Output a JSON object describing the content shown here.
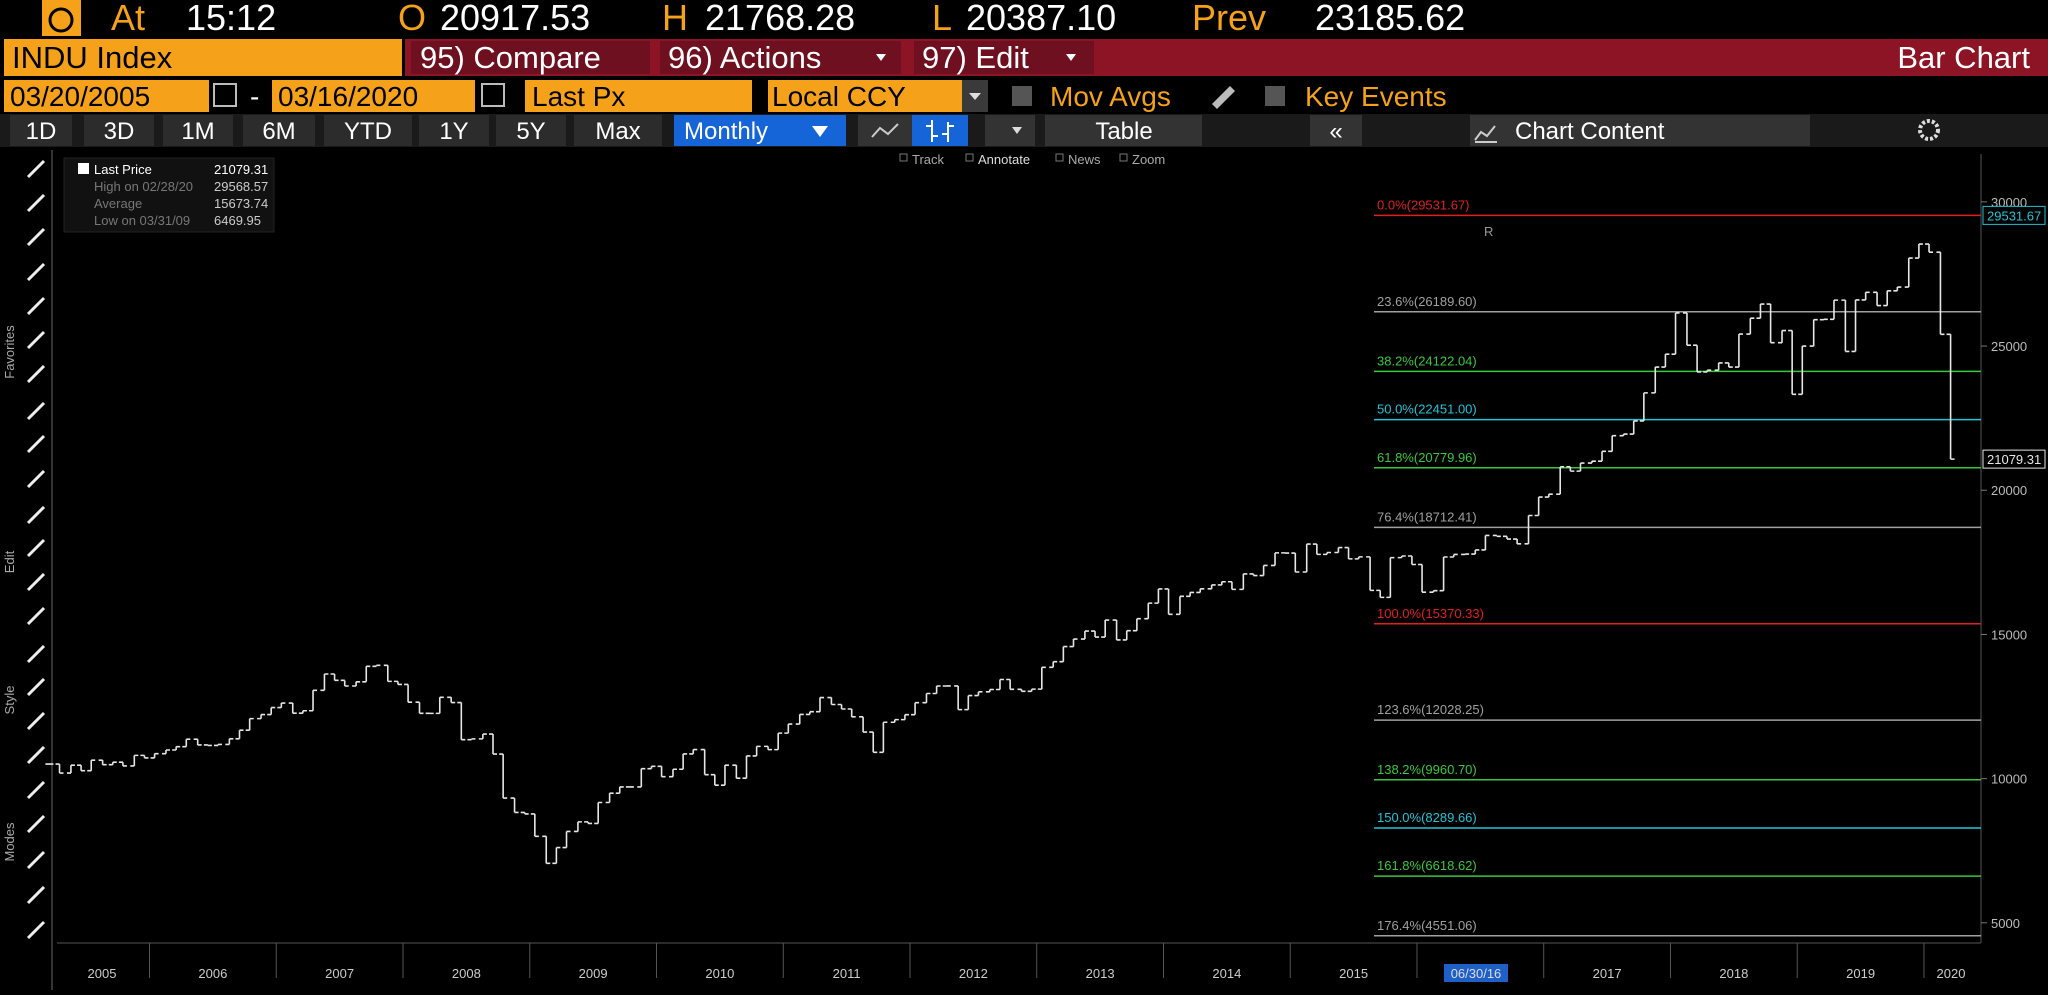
{
  "header": {
    "at": "At",
    "time": "15:12",
    "open_label": "O",
    "open": "20917.53",
    "high_label": "H",
    "high": "21768.28",
    "low_label": "L",
    "low": "20387.10",
    "prev_label": "Prev",
    "prev": "23185.62"
  },
  "menu": {
    "ticker": "INDU Index",
    "compare": "95) Compare",
    "actions": "96) Actions",
    "edit": "97) Edit",
    "chart_type": "Bar Chart"
  },
  "settings": {
    "start_date": "03/20/2005",
    "dash": "-",
    "end_date": "03/16/2020",
    "field": "Last Px",
    "currency": "Local CCY",
    "mov_avgs": "Mov Avgs",
    "key_events": "Key Events"
  },
  "toolbar": {
    "periods": [
      "1D",
      "3D",
      "1M",
      "6M",
      "YTD",
      "1Y",
      "5Y",
      "Max"
    ],
    "frequency": "Monthly",
    "table": "Table",
    "collapse": "«",
    "chart_content": "Chart Content",
    "tools": [
      "Track",
      "Annotate",
      "News",
      "Zoom"
    ]
  },
  "sidebar": [
    "Favorites",
    "Edit",
    "Style",
    "Modes"
  ],
  "chart_data": {
    "type": "ohlc",
    "x": [
      2005.21,
      2005.29,
      2005.38,
      2005.46,
      2005.54,
      2005.63,
      2005.71,
      2005.79,
      2005.88,
      2005.96,
      2006.04,
      2006.13,
      2006.21,
      2006.29,
      2006.38,
      2006.46,
      2006.54,
      2006.63,
      2006.71,
      2006.79,
      2006.88,
      2006.96,
      2007.04,
      2007.13,
      2007.21,
      2007.29,
      2007.38,
      2007.46,
      2007.54,
      2007.63,
      2007.71,
      2007.79,
      2007.88,
      2007.96,
      2008.04,
      2008.13,
      2008.21,
      2008.29,
      2008.38,
      2008.46,
      2008.54,
      2008.63,
      2008.71,
      2008.79,
      2008.88,
      2008.96,
      2009.04,
      2009.13,
      2009.21,
      2009.29,
      2009.38,
      2009.46,
      2009.54,
      2009.63,
      2009.71,
      2009.79,
      2009.88,
      2009.96,
      2010.04,
      2010.13,
      2010.21,
      2010.29,
      2010.38,
      2010.46,
      2010.54,
      2010.63,
      2010.71,
      2010.79,
      2010.88,
      2010.96,
      2011.04,
      2011.13,
      2011.21,
      2011.29,
      2011.38,
      2011.46,
      2011.54,
      2011.63,
      2011.71,
      2011.79,
      2011.88,
      2011.96,
      2012.04,
      2012.13,
      2012.21,
      2012.29,
      2012.38,
      2012.46,
      2012.54,
      2012.63,
      2012.71,
      2012.79,
      2012.88,
      2012.96,
      2013.04,
      2013.13,
      2013.21,
      2013.29,
      2013.38,
      2013.46,
      2013.54,
      2013.63,
      2013.71,
      2013.79,
      2013.88,
      2013.96,
      2014.04,
      2014.13,
      2014.21,
      2014.29,
      2014.38,
      2014.46,
      2014.54,
      2014.63,
      2014.71,
      2014.79,
      2014.88,
      2014.96,
      2015.04,
      2015.13,
      2015.21,
      2015.29,
      2015.38,
      2015.46,
      2015.54,
      2015.63,
      2015.71,
      2015.79,
      2015.88,
      2015.96,
      2016.04,
      2016.13,
      2016.21,
      2016.29,
      2016.38,
      2016.46,
      2016.54,
      2016.63,
      2016.71,
      2016.79,
      2016.88,
      2016.96,
      2017.04,
      2017.13,
      2017.21,
      2017.29,
      2017.38,
      2017.46,
      2017.54,
      2017.63,
      2017.71,
      2017.79,
      2017.88,
      2017.96,
      2018.04,
      2018.13,
      2018.21,
      2018.29,
      2018.38,
      2018.46,
      2018.54,
      2018.63,
      2018.71,
      2018.79,
      2018.88,
      2018.96,
      2019.04,
      2019.13,
      2019.21,
      2019.29,
      2019.38,
      2019.46,
      2019.54,
      2019.63,
      2019.71,
      2019.79,
      2019.88,
      2019.96,
      2020.04,
      2020.13,
      2020.21
    ],
    "series": [
      {
        "name": "Last Price",
        "color": "#e6e6e6",
        "values": [
          10504,
          10193,
          10467,
          10275,
          10641,
          10482,
          10569,
          10440,
          10806,
          10718,
          10865,
          10993,
          11109,
          11367,
          11168,
          11150,
          11186,
          11381,
          11679,
          12081,
          12222,
          12463,
          12622,
          12269,
          12354,
          13063,
          13628,
          13409,
          13212,
          13358,
          13896,
          13930,
          13372,
          13265,
          12650,
          12266,
          12263,
          12820,
          12638,
          11350,
          11378,
          11544,
          10851,
          9325,
          8829,
          8776,
          8001,
          7063,
          7609,
          8168,
          8500,
          8447,
          9172,
          9496,
          9712,
          9713,
          10345,
          10428,
          10067,
          10325,
          10857,
          11009,
          10137,
          9774,
          10466,
          10015,
          10788,
          11118,
          11006,
          11578,
          11892,
          12226,
          12320,
          12811,
          12570,
          12414,
          12143,
          11614,
          10913,
          11955,
          12046,
          12218,
          12633,
          12952,
          13212,
          13214,
          12393,
          12880,
          13009,
          13091,
          13437,
          13096,
          13026,
          13104,
          13861,
          14054,
          14579,
          14840,
          15116,
          14910,
          15500,
          14810,
          15130,
          15546,
          16086,
          16577,
          15699,
          16322,
          16458,
          16581,
          16717,
          16827,
          16563,
          17098,
          17043,
          17391,
          17828,
          17823,
          17165,
          18133,
          17776,
          17841,
          18011,
          17620,
          17690,
          16528,
          16285,
          17664,
          17720,
          17425,
          16466,
          16517,
          17685,
          17774,
          17787,
          17930,
          18432,
          18401,
          18308,
          18142,
          19124,
          19763,
          19864,
          20812,
          20663,
          20941,
          21009,
          21350,
          21891,
          21948,
          22405,
          23377,
          24272,
          24719,
          26149,
          25029,
          24103,
          24163,
          24416,
          24271,
          25415,
          25965,
          26458,
          25116,
          25538,
          23327,
          24999,
          25916,
          25929,
          26593,
          24815,
          26600,
          26864,
          26403,
          26917,
          27046,
          28051,
          28538,
          28256,
          25409,
          21079
        ]
      }
    ],
    "xlim": [
      2005.27,
      2020.45
    ],
    "xticks": [
      2005,
      2006,
      2007,
      2008,
      2009,
      2010,
      2011,
      2012,
      2013,
      2014,
      2015,
      2016,
      2017,
      2018,
      2019,
      2020
    ],
    "ylim": [
      4300,
      31660
    ],
    "yticks": [
      5000,
      10000,
      15000,
      20000,
      25000,
      30000
    ],
    "legend_box": {
      "last_price": "21079.31",
      "rows": [
        {
          "label": "High on 02/28/20",
          "value": "29568.57"
        },
        {
          "label": "Average",
          "value": "15673.74"
        },
        {
          "label": "Low on 03/31/09",
          "value": "6469.95"
        }
      ]
    },
    "fib_levels": [
      {
        "label": "0.0%(29531.67)",
        "value": 29531.67,
        "color": "#e02020"
      },
      {
        "label": "23.6%(26189.60)",
        "value": 26189.6,
        "color": "#a0a0a0"
      },
      {
        "label": "38.2%(24122.04)",
        "value": 24122.04,
        "color": "#39c83c"
      },
      {
        "label": "50.0%(22451.00)",
        "value": 22451.0,
        "color": "#22c4d8"
      },
      {
        "label": "61.8%(20779.96)",
        "value": 20779.96,
        "color": "#39c83c"
      },
      {
        "label": "76.4%(18712.41)",
        "value": 18712.41,
        "color": "#a0a0a0"
      },
      {
        "label": "100.0%(15370.33)",
        "value": 15370.33,
        "color": "#e02020"
      },
      {
        "label": "123.6%(12028.25)",
        "value": 12028.25,
        "color": "#a0a0a0"
      },
      {
        "label": "138.2%(9960.70)",
        "value": 9960.7,
        "color": "#39c83c"
      },
      {
        "label": "150.0%(8289.66)",
        "value": 8289.66,
        "color": "#22c4d8"
      },
      {
        "label": "161.8%(6618.62)",
        "value": 6618.62,
        "color": "#39c83c"
      },
      {
        "label": "176.4%(4551.06)",
        "value": 4551.06,
        "color": "#a0a0a0"
      }
    ],
    "price_flags": [
      {
        "label": "29531.67",
        "value": 29531.67,
        "color": "#22c4d8"
      },
      {
        "label": "21079.31",
        "value": 21079.31,
        "color": "#e6e6e6"
      }
    ],
    "cursor_date": "06/30/16",
    "annotation": "R"
  }
}
